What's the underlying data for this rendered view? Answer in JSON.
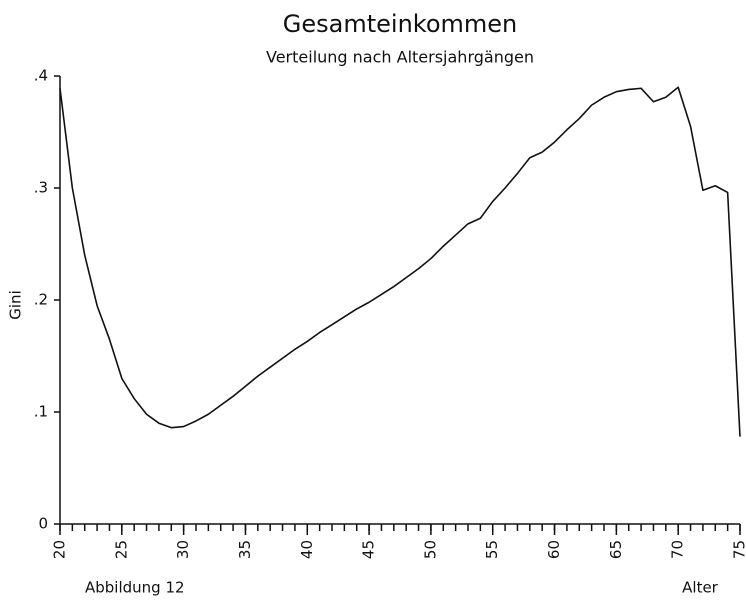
{
  "chart_data": {
    "type": "line",
    "title": "Gesamteinkommen",
    "subtitle": "Verteilung nach Altersjahrgängen",
    "ylabel": "Gini",
    "xlabel": "Alter",
    "annotation": "Abbildung 12",
    "x": [
      20,
      21,
      22,
      23,
      24,
      25,
      26,
      27,
      28,
      29,
      30,
      31,
      32,
      33,
      34,
      35,
      36,
      37,
      38,
      39,
      40,
      41,
      42,
      43,
      44,
      45,
      46,
      47,
      48,
      49,
      50,
      51,
      52,
      53,
      54,
      55,
      56,
      57,
      58,
      59,
      60,
      61,
      62,
      63,
      64,
      65,
      66,
      67,
      68,
      69,
      70,
      71,
      72,
      73,
      74,
      75
    ],
    "series": [
      {
        "name": "Gini",
        "color": "#111111",
        "values": [
          0.389,
          0.3,
          0.24,
          0.195,
          0.165,
          0.13,
          0.112,
          0.098,
          0.09,
          0.086,
          0.087,
          0.092,
          0.098,
          0.106,
          0.114,
          0.123,
          0.132,
          0.14,
          0.148,
          0.156,
          0.163,
          0.171,
          0.178,
          0.185,
          0.192,
          0.198,
          0.205,
          0.212,
          0.22,
          0.228,
          0.237,
          0.248,
          0.258,
          0.268,
          0.273,
          0.288,
          0.3,
          0.313,
          0.327,
          0.332,
          0.341,
          0.352,
          0.362,
          0.374,
          0.381,
          0.386,
          0.388,
          0.389,
          0.377,
          0.381,
          0.39,
          0.355,
          0.298,
          0.302,
          0.296,
          0.078
        ]
      }
    ],
    "xlim": [
      20,
      75
    ],
    "xticks": [
      20,
      25,
      30,
      35,
      40,
      45,
      50,
      55,
      60,
      65,
      70,
      75
    ],
    "ylim": [
      0,
      0.4
    ],
    "yticks": [
      0,
      {
        "value": 0.1,
        "label": ".1"
      },
      {
        "value": 0.2,
        "label": ".2"
      },
      {
        "value": 0.3,
        "label": ".3"
      },
      {
        "value": 0.4,
        "label": ".4"
      }
    ],
    "grid": false
  }
}
